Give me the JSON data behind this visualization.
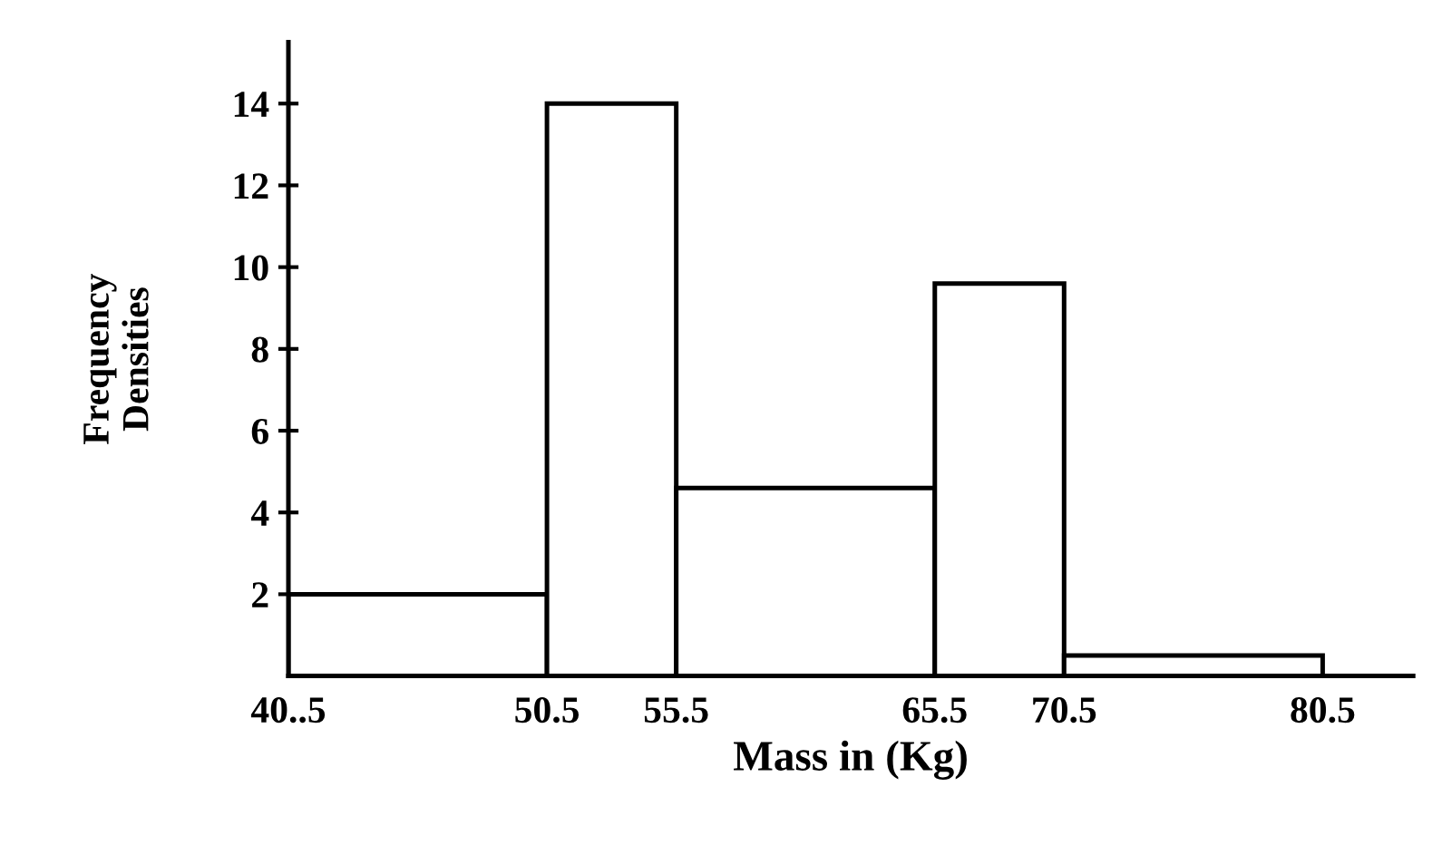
{
  "chart_data": {
    "type": "histogram",
    "xlabel": "Mass in (Kg)",
    "ylabel": "Frequency\nDensities",
    "bins": [
      40.5,
      50.5,
      55.5,
      65.5,
      70.5,
      80.5
    ],
    "values": [
      2,
      14,
      4.6,
      9.6,
      0.5
    ],
    "color": "#ffffff",
    "xlim": [
      40.5,
      84
    ],
    "xticks": [
      {
        "value": 40.5,
        "label": "40..5"
      },
      50.5,
      55.5,
      65.5,
      70.5,
      80.5
    ],
    "ylim": [
      0,
      15.5
    ],
    "yticks": [
      2,
      4,
      6,
      8,
      10,
      12,
      14
    ],
    "grid": false
  }
}
